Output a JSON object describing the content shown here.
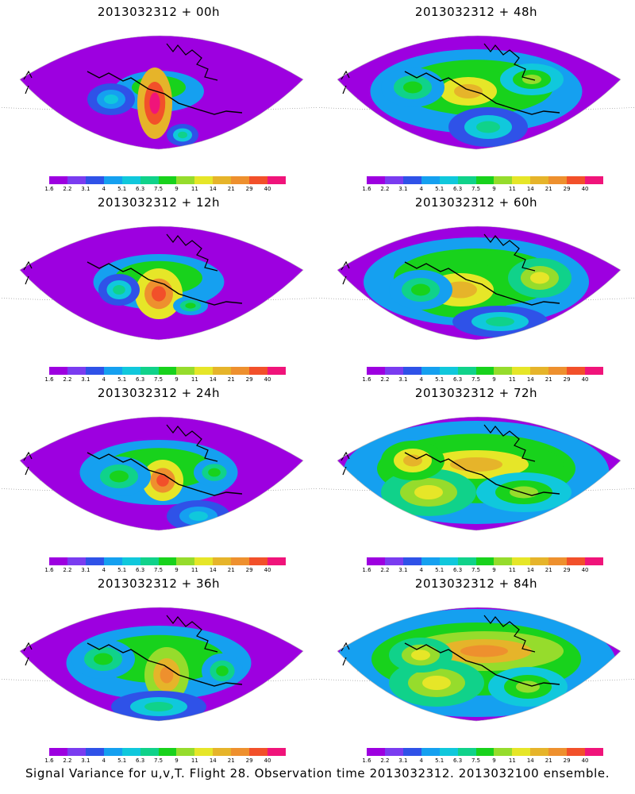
{
  "panels": [
    {
      "title": "2013032312 + 00h"
    },
    {
      "title": "2013032312 + 48h"
    },
    {
      "title": "2013032312 + 12h"
    },
    {
      "title": "2013032312 + 60h"
    },
    {
      "title": "2013032312 + 24h"
    },
    {
      "title": "2013032312 + 72h"
    },
    {
      "title": "2013032312 + 36h"
    },
    {
      "title": "2013032312 + 84h"
    }
  ],
  "colorbar": {
    "labels": [
      "1.6",
      "2.2",
      "3.1",
      "4",
      "5.1",
      "6.3",
      "7.5",
      "9",
      "11",
      "14",
      "21",
      "29",
      "40"
    ],
    "colors": [
      "#9d00e0",
      "#7a3cf0",
      "#2f52e8",
      "#15a0f0",
      "#10c8dc",
      "#10d28a",
      "#18d21c",
      "#96dc2c",
      "#e6e628",
      "#e6b42a",
      "#ee902e",
      "#f2502a",
      "#f0147a"
    ]
  },
  "caption": "Signal Variance for u,v,T. Flight 28. Observation time 2013032312. 2013032100 ensemble."
}
